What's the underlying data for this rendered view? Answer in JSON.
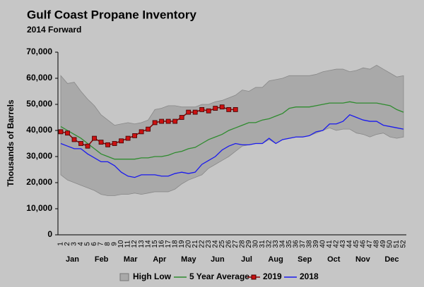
{
  "chart_data": {
    "type": "line",
    "title": "Gulf Coast Propane Inventory",
    "subtitle": "2014 Forward",
    "y_label": "Thousands of Barrels",
    "categories": [
      1,
      2,
      3,
      4,
      5,
      6,
      7,
      8,
      9,
      10,
      11,
      12,
      13,
      14,
      15,
      16,
      17,
      18,
      19,
      20,
      21,
      22,
      23,
      24,
      25,
      26,
      27,
      28,
      29,
      30,
      31,
      32,
      33,
      34,
      35,
      36,
      37,
      38,
      39,
      40,
      41,
      42,
      43,
      44,
      45,
      46,
      47,
      48,
      49,
      50,
      51,
      52
    ],
    "months": [
      "Jan",
      "Feb",
      "Mar",
      "Apr",
      "May",
      "Jun",
      "Jul",
      "Aug",
      "Sep",
      "Oct",
      "Nov",
      "Dec"
    ],
    "ylim": [
      0,
      70000
    ],
    "yticks": [
      {
        "value": 0,
        "label": "0"
      },
      {
        "value": 10000,
        "label": "10,000"
      },
      {
        "value": 20000,
        "label": "20,000"
      },
      {
        "value": 30000,
        "label": "30,000"
      },
      {
        "value": 40000,
        "label": "40,000"
      },
      {
        "value": 50000,
        "label": "50,000"
      },
      {
        "value": 60000,
        "label": "60,000"
      },
      {
        "value": 70000,
        "label": "70,000"
      }
    ],
    "grid": false,
    "legend": "bottom",
    "series": [
      {
        "name": "High Low",
        "kind": "band",
        "color": "#a9a9a9",
        "values": [
          61000,
          58000,
          58500,
          55000,
          52000,
          49500,
          46000,
          44000,
          42000,
          42500,
          43000,
          42500,
          43000,
          44000,
          48000,
          48500,
          49500,
          49500,
          49000,
          49000,
          49000,
          50000,
          50000,
          51000,
          51500,
          52500,
          53500,
          55500,
          55000,
          56500,
          56500,
          59000,
          59500,
          60000,
          61000,
          61000,
          61000,
          61000,
          61500,
          62500,
          63000,
          63500,
          63500,
          62500,
          63000,
          64000,
          63500,
          65000,
          63500,
          62000,
          60500,
          61000
        ],
        "low": [
          23000,
          21000,
          20000,
          19000,
          18000,
          17000,
          15500,
          15000,
          15000,
          15500,
          15500,
          16000,
          15500,
          16000,
          16500,
          16500,
          16500,
          17500,
          19500,
          21000,
          22000,
          23000,
          25500,
          27000,
          28500,
          30000,
          32000,
          34000,
          34500,
          35000,
          35000,
          36500,
          35000,
          36500,
          37000,
          37500,
          37500,
          38000,
          39000,
          40000,
          41000,
          40000,
          40500,
          40500,
          39000,
          38500,
          37500,
          38500,
          39000,
          37500,
          37000,
          37500
        ]
      },
      {
        "name": "5 Year Average",
        "color": "#2e8b2e",
        "values": [
          41500,
          40000,
          38500,
          37000,
          35000,
          33000,
          31000,
          30000,
          29000,
          29000,
          29000,
          29000,
          29500,
          29500,
          30000,
          30000,
          30500,
          31500,
          32000,
          33000,
          33500,
          35000,
          36500,
          37500,
          38500,
          40000,
          41000,
          42000,
          43000,
          43000,
          44000,
          44500,
          45500,
          46500,
          48500,
          49000,
          49000,
          49000,
          49500,
          50000,
          50500,
          50500,
          50500,
          51000,
          50500,
          50500,
          50500,
          50500,
          50000,
          49500,
          48000,
          47000
        ]
      },
      {
        "name": "2019",
        "color": "#8b0000",
        "marker": "#cc1111",
        "values": [
          39500,
          39000,
          36500,
          35000,
          34000,
          37000,
          35500,
          34500,
          35000,
          36000,
          37000,
          38000,
          39500,
          40500,
          43000,
          43500,
          43500,
          43500,
          45000,
          47000,
          47000,
          48000,
          47500,
          48500,
          49000,
          48000,
          48000,
          null,
          null,
          null,
          null,
          null,
          null,
          null,
          null,
          null,
          null,
          null,
          null,
          null,
          null,
          null,
          null,
          null,
          null,
          null,
          null,
          null,
          null,
          null,
          null,
          null
        ]
      },
      {
        "name": "2018",
        "color": "#1a1aee",
        "values": [
          35000,
          34000,
          33000,
          33000,
          31000,
          29500,
          28000,
          28000,
          26500,
          24000,
          22500,
          22000,
          23000,
          23000,
          23000,
          22500,
          22500,
          23500,
          24000,
          23500,
          24000,
          27000,
          28500,
          30000,
          32500,
          34000,
          35000,
          34500,
          34500,
          35000,
          35000,
          37000,
          35000,
          36500,
          37000,
          37500,
          37500,
          38000,
          39500,
          40000,
          42500,
          42500,
          43500,
          46000,
          45000,
          44000,
          43500,
          43500,
          42000,
          41500,
          41000,
          40500
        ]
      }
    ]
  }
}
